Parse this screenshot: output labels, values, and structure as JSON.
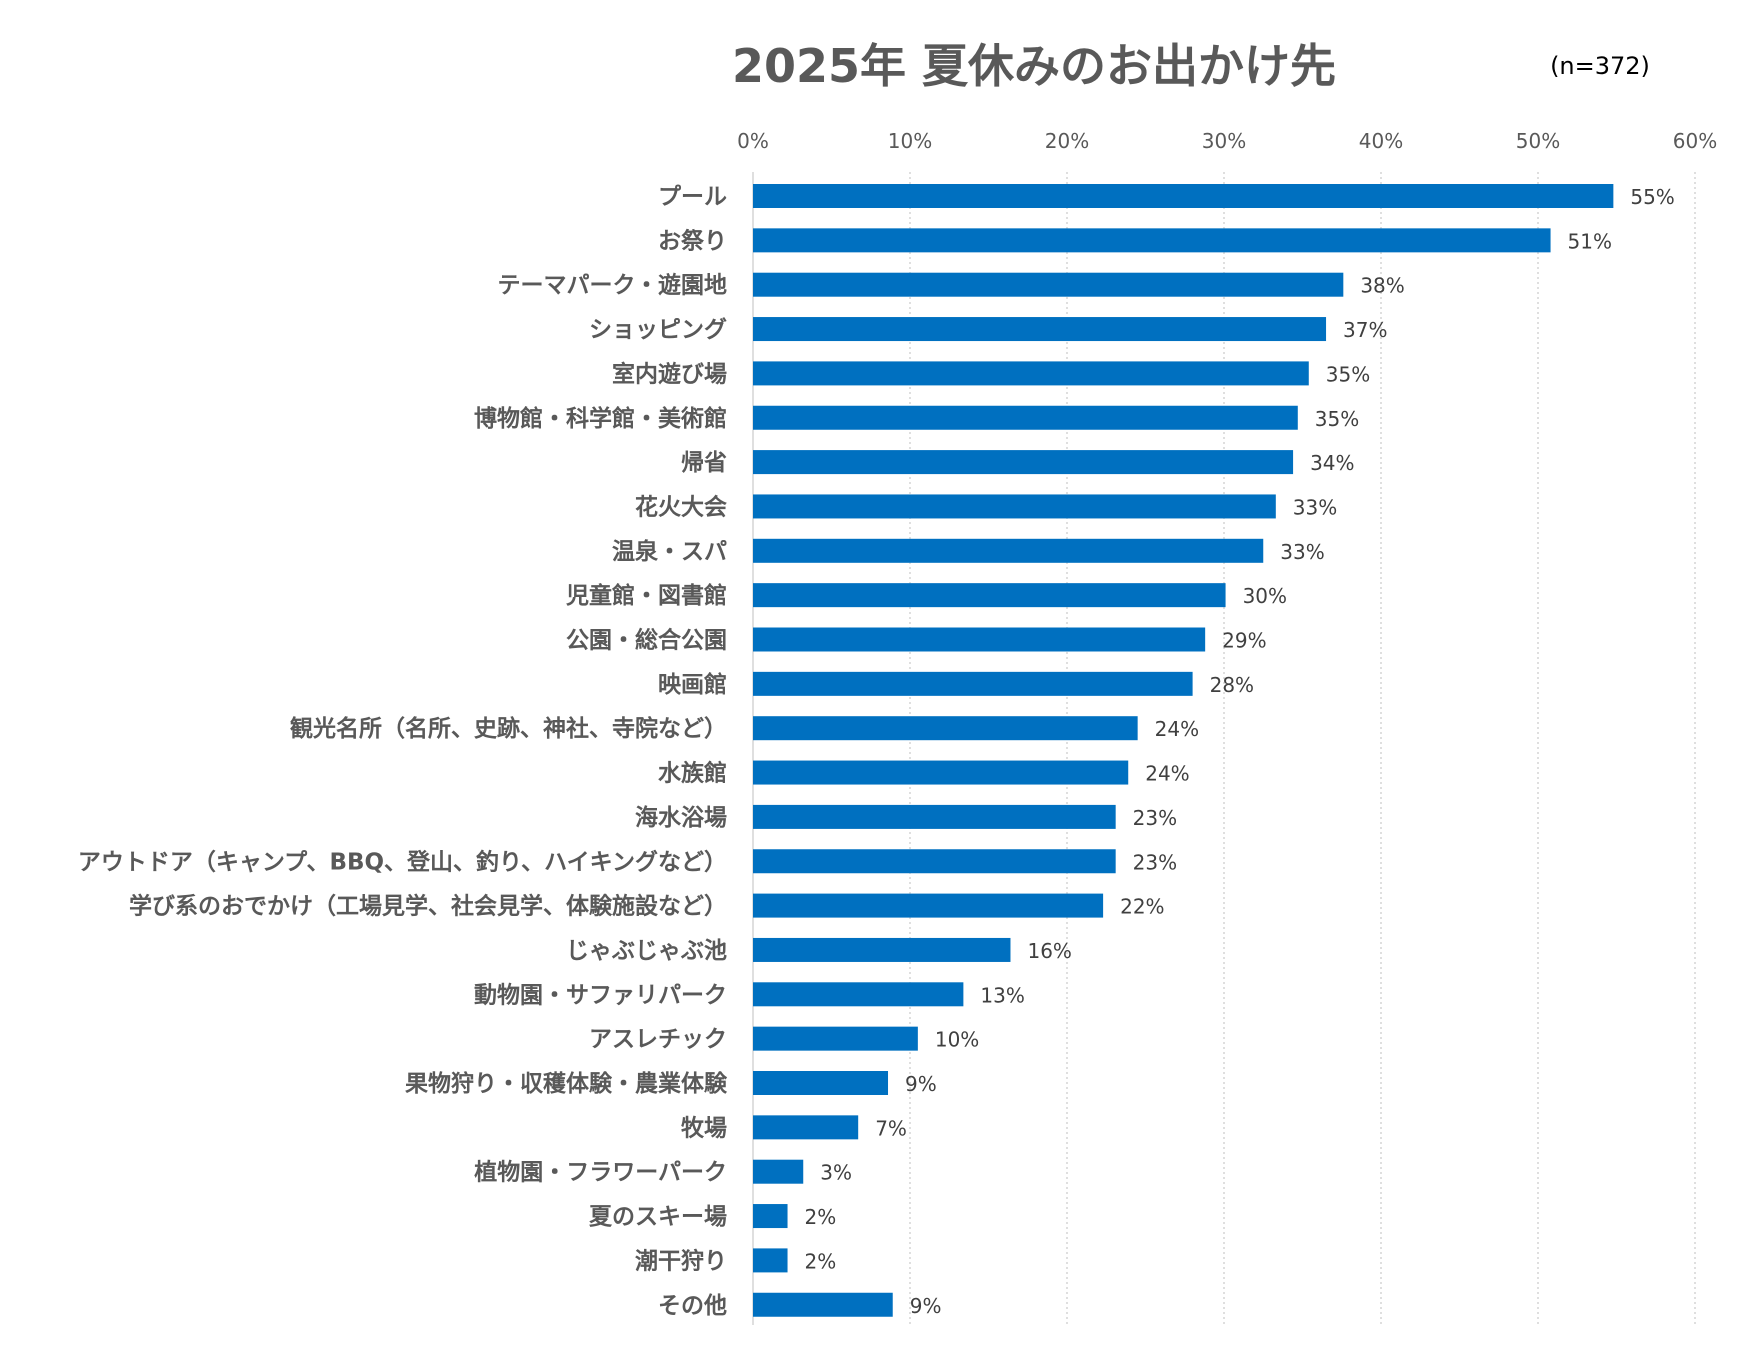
{
  "chart_data": {
    "type": "bar",
    "orientation": "horizontal",
    "title": "2025年 夏休みのお出かけ先",
    "annotation": "(n=372)",
    "xlim": [
      0,
      60
    ],
    "x_ticks": [
      "0%",
      "10%",
      "20%",
      "30%",
      "40%",
      "50%",
      "60%"
    ],
    "x_tick_values": [
      0,
      10,
      20,
      30,
      40,
      50,
      60
    ],
    "x_axis_position": "top",
    "grid": "vertical dotted",
    "legend": "none",
    "categories": [
      "プール",
      "お祭り",
      "テーマパーク・遊園地",
      "ショッピング",
      "室内遊び場",
      "博物館・科学館・美術館",
      "帰省",
      "花火大会",
      "温泉・スパ",
      "児童館・図書館",
      "公園・総合公園",
      "映画館",
      "観光名所（名所、史跡、神社、寺院など）",
      "水族館",
      "海水浴場",
      "アウトドア（キャンプ、BBQ、登山、釣り、ハイキングなど）",
      "学び系のおでかけ（工場見学、社会見学、体験施設など）",
      "じゃぶじゃぶ池",
      "動物園・サファリパーク",
      "アスレチック",
      "果物狩り・収穫体験・農業体験",
      "牧場",
      "植物園・フラワーパーク",
      "夏のスキー場",
      "潮干狩り",
      "その他"
    ],
    "values": [
      54.8,
      50.8,
      37.6,
      36.5,
      35.4,
      34.7,
      34.4,
      33.3,
      32.5,
      30.1,
      28.8,
      28.0,
      24.5,
      23.9,
      23.1,
      23.1,
      22.3,
      16.4,
      13.4,
      10.5,
      8.6,
      6.7,
      3.2,
      2.2,
      2.2,
      8.9
    ],
    "data_labels": [
      "55%",
      "51%",
      "38%",
      "37%",
      "35%",
      "35%",
      "34%",
      "33%",
      "33%",
      "30%",
      "29%",
      "28%",
      "24%",
      "24%",
      "23%",
      "23%",
      "22%",
      "16%",
      "13%",
      "10%",
      "9%",
      "7%",
      "3%",
      "2%",
      "2%",
      "9%"
    ],
    "colors": {
      "bar": "#0070C0",
      "title": "#595959",
      "category_label": "#595959",
      "tick_label": "#595959",
      "data_label": "#404040",
      "grid": "#BFBFBF",
      "annotation": "#000000"
    }
  }
}
